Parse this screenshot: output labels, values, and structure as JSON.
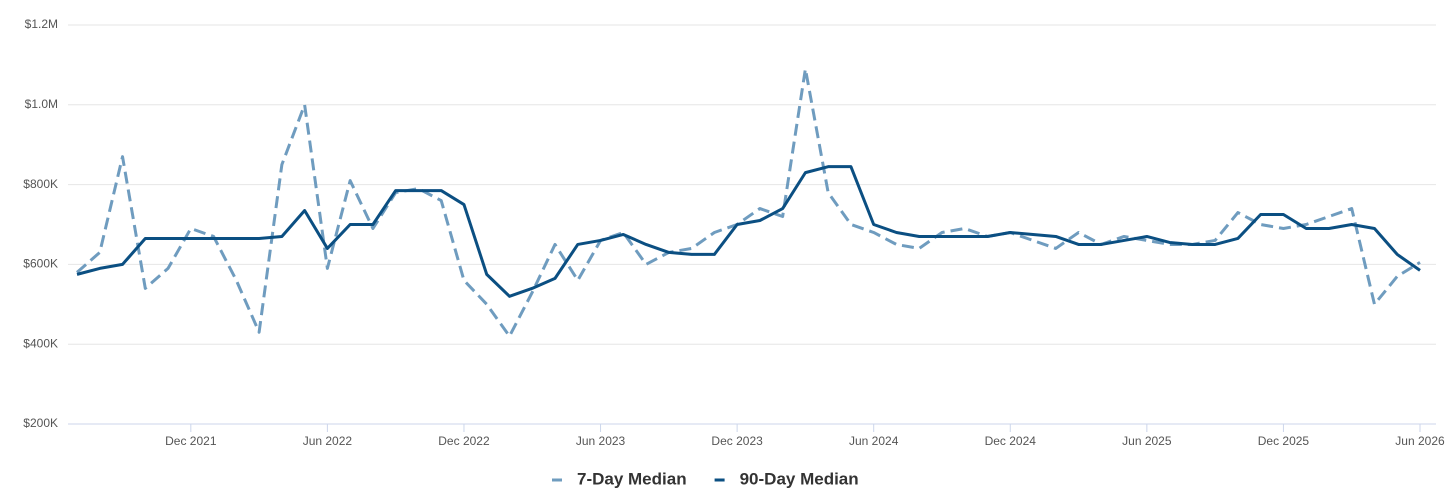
{
  "chart_data": {
    "type": "line",
    "x": [
      "2021-07",
      "2021-08",
      "2021-09",
      "2021-10",
      "2021-11",
      "2021-12",
      "2022-01",
      "2022-02",
      "2022-03",
      "2022-04",
      "2022-05",
      "2022-06",
      "2022-07",
      "2022-08",
      "2022-09",
      "2022-10",
      "2022-11",
      "2022-12",
      "2023-01",
      "2023-02",
      "2023-03",
      "2023-04",
      "2023-05",
      "2023-06",
      "2023-07",
      "2023-08",
      "2023-09",
      "2023-10",
      "2023-11",
      "2023-12",
      "2024-01",
      "2024-02",
      "2024-03",
      "2024-04",
      "2024-05",
      "2024-06",
      "2024-07",
      "2024-08",
      "2024-09",
      "2024-10",
      "2024-11",
      "2024-12",
      "2025-01",
      "2025-02",
      "2025-03",
      "2025-04",
      "2025-05",
      "2025-06",
      "2025-07",
      "2025-08",
      "2025-09",
      "2025-10",
      "2025-11",
      "2025-12",
      "2026-01",
      "2026-02",
      "2026-03",
      "2026-04",
      "2026-05",
      "2026-06"
    ],
    "series": [
      {
        "name": "7-Day Median",
        "color": "#6f9cbf",
        "line_style": "dashed",
        "values": [
          580000,
          630000,
          870000,
          540000,
          590000,
          690000,
          670000,
          560000,
          430000,
          850000,
          1000000,
          590000,
          810000,
          690000,
          780000,
          790000,
          760000,
          560000,
          500000,
          420000,
          530000,
          650000,
          560000,
          660000,
          680000,
          600000,
          630000,
          640000,
          680000,
          700000,
          740000,
          720000,
          1090000,
          780000,
          700000,
          680000,
          650000,
          640000,
          680000,
          690000,
          670000,
          680000,
          660000,
          640000,
          680000,
          650000,
          670000,
          660000,
          650000,
          650000,
          660000,
          730000,
          700000,
          690000,
          700000,
          720000,
          740000,
          500000,
          570000,
          605000
        ]
      },
      {
        "name": "90-Day Median",
        "color": "#0b4f82",
        "line_style": "solid",
        "values": [
          575000,
          590000,
          600000,
          665000,
          665000,
          665000,
          665000,
          665000,
          665000,
          670000,
          735000,
          640000,
          700000,
          700000,
          785000,
          785000,
          785000,
          750000,
          575000,
          520000,
          540000,
          565000,
          650000,
          660000,
          675000,
          650000,
          630000,
          625000,
          625000,
          700000,
          710000,
          740000,
          830000,
          845000,
          845000,
          700000,
          680000,
          670000,
          670000,
          670000,
          670000,
          680000,
          675000,
          670000,
          650000,
          650000,
          660000,
          670000,
          655000,
          650000,
          650000,
          665000,
          725000,
          725000,
          690000,
          690000,
          700000,
          690000,
          625000,
          585000
        ]
      }
    ],
    "xlim": [
      "2021-07",
      "2026-06"
    ],
    "xticks": [
      {
        "value": "2021-12",
        "label": "Dec 2021"
      },
      {
        "value": "2022-06",
        "label": "Jun 2022"
      },
      {
        "value": "2022-12",
        "label": "Dec 2022"
      },
      {
        "value": "2023-06",
        "label": "Jun 2023"
      },
      {
        "value": "2023-12",
        "label": "Dec 2023"
      },
      {
        "value": "2024-06",
        "label": "Jun 2024"
      },
      {
        "value": "2024-12",
        "label": "Dec 2024"
      },
      {
        "value": "2025-06",
        "label": "Jun 2025"
      },
      {
        "value": "2025-12",
        "label": "Dec 2025"
      },
      {
        "value": "2026-06",
        "label": "Jun 2026"
      }
    ],
    "ylim": [
      200000,
      1200000
    ],
    "yticks": [
      {
        "value": 200000,
        "label": "$200K"
      },
      {
        "value": 400000,
        "label": "$400K"
      },
      {
        "value": 600000,
        "label": "$600K"
      },
      {
        "value": 800000,
        "label": "$800K"
      },
      {
        "value": 1000000,
        "label": "$1.0M"
      },
      {
        "value": 1200000,
        "label": "$1.2M"
      }
    ],
    "grid": true
  }
}
